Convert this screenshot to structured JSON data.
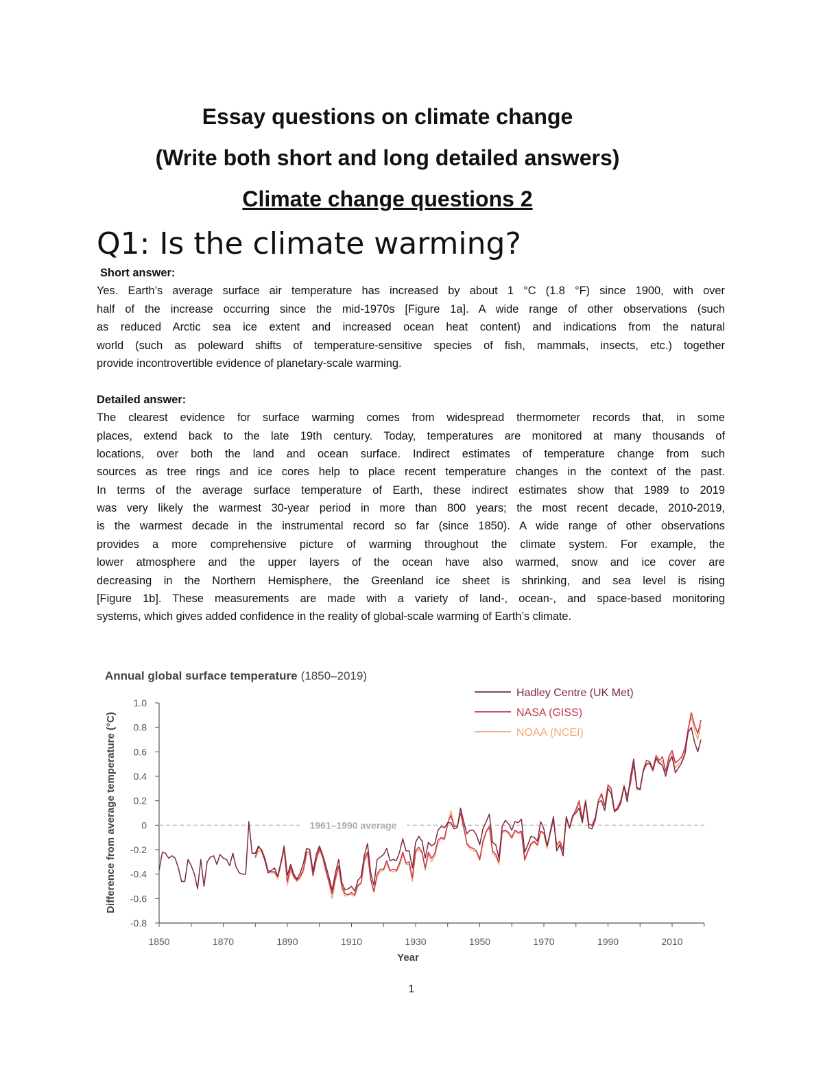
{
  "heading": {
    "title": "Essay questions on climate change",
    "subtitle": "(Write both short and long detailed answers)",
    "section": "Climate change questions 2"
  },
  "question": "Q1: Is the climate warming?",
  "short_answer": {
    "label": "Short answer:",
    "lines": [
      "Yes. Earth’s average surface air temperature has increased by about 1 °C (1.8 °F) since 1900, with over",
      "half of the increase occurring since the mid-1970s [Figure 1a]. A wide range of other observations (such",
      "as reduced Arctic sea ice extent and increased ocean heat content) and indications from the natural",
      "world (such as poleward shifts of temperature-sensitive species of fish, mammals, insects, etc.) together",
      "provide incontrovertible evidence of planetary-scale warming."
    ]
  },
  "detailed_answer": {
    "label": "Detailed answer:",
    "lines": [
      "The clearest evidence for surface warming comes from widespread thermometer records that, in some",
      "places, extend back to the late 19th century. Today, temperatures are monitored at many thousands of",
      "locations, over both the land and ocean surface. Indirect estimates of temperature change from such",
      "sources as tree rings and ice cores help to place recent temperature changes in the context of the past.",
      "In terms of the average surface temperature of Earth, these indirect estimates show that 1989 to 2019",
      "was very likely the warmest 30-year period in more than 800 years; the most recent decade, 2010-2019,",
      "is the warmest decade in the instrumental record so far (since 1850). A wide range of other observations",
      "provides a more comprehensive picture of warming throughout the climate system. For example, the",
      "lower atmosphere and the upper layers of the ocean have also warmed, snow and ice cover are",
      "decreasing in the Northern Hemisphere, the Greenland ice sheet is shrinking, and sea level is rising",
      "[Figure 1b]. These measurements are made with a variety of land-, ocean-, and space-based monitoring",
      "systems, which gives added confidence in the reality of global-scale warming of Earth’s climate."
    ]
  },
  "page_number": "1",
  "chart_data": {
    "type": "line",
    "title": "Annual global surface temperature",
    "title_range": "(1850–2019)",
    "xlabel": "Year",
    "ylabel": "Difference from average temperature (°C)",
    "xlim": [
      1850,
      2019
    ],
    "ylim": [
      -0.8,
      1.0
    ],
    "x_ticks": [
      "1850",
      "1870",
      "1890",
      "1910",
      "1930",
      "1950",
      "1970",
      "1990",
      "2010"
    ],
    "y_ticks": [
      "1.0",
      "0.8",
      "0.6",
      "0.4",
      "0.2",
      "0",
      "-0.2",
      "-0.4",
      "-0.6",
      "-0.8"
    ],
    "reference_line": {
      "value": 0,
      "label": "1961–1990 average",
      "style": "dashed",
      "color": "#bdbdbd"
    },
    "grid": false,
    "legend_position": "top-right",
    "series": [
      {
        "name": "Hadley Centre (UK Met)",
        "color": "#7b2a40",
        "start_year": 1850,
        "values": [
          -0.37,
          -0.22,
          -0.23,
          -0.27,
          -0.25,
          -0.27,
          -0.35,
          -0.46,
          -0.46,
          -0.28,
          -0.33,
          -0.4,
          -0.52,
          -0.28,
          -0.5,
          -0.3,
          -0.26,
          -0.25,
          -0.32,
          -0.24,
          -0.27,
          -0.28,
          -0.33,
          -0.23,
          -0.34,
          -0.39,
          -0.4,
          -0.4,
          0.03,
          -0.23,
          -0.23,
          -0.17,
          -0.21,
          -0.29,
          -0.39,
          -0.37,
          -0.35,
          -0.42,
          -0.31,
          -0.17,
          -0.41,
          -0.32,
          -0.4,
          -0.44,
          -0.39,
          -0.31,
          -0.19,
          -0.2,
          -0.38,
          -0.24,
          -0.17,
          -0.24,
          -0.33,
          -0.43,
          -0.53,
          -0.39,
          -0.28,
          -0.47,
          -0.53,
          -0.52,
          -0.5,
          -0.54,
          -0.45,
          -0.42,
          -0.25,
          -0.15,
          -0.39,
          -0.49,
          -0.28,
          -0.26,
          -0.24,
          -0.19,
          -0.29,
          -0.28,
          -0.29,
          -0.22,
          -0.11,
          -0.21,
          -0.21,
          -0.35,
          -0.14,
          -0.09,
          -0.13,
          -0.27,
          -0.14,
          -0.17,
          -0.15,
          -0.04,
          -0.01,
          -0.02,
          0.02,
          0.02,
          -0.03,
          -0.02,
          0.14,
          0.03,
          -0.07,
          -0.04,
          -0.04,
          -0.08,
          -0.16,
          -0.03,
          0.03,
          0.09,
          -0.14,
          -0.16,
          -0.27,
          -0.01,
          0.04,
          0.01,
          -0.04,
          0.03,
          0.02,
          0.05,
          -0.22,
          -0.16,
          -0.09,
          -0.1,
          -0.13,
          0.03,
          -0.03,
          -0.17,
          -0.05,
          0.07,
          -0.21,
          -0.16,
          -0.25,
          0.07,
          -0.02,
          0.08,
          0.1,
          0.14,
          0.02,
          0.19,
          -0.02,
          -0.03,
          0.04,
          0.19,
          0.2,
          0.12,
          0.3,
          0.26,
          0.11,
          0.13,
          0.18,
          0.32,
          0.19,
          0.39,
          0.54,
          0.31,
          0.29,
          0.44,
          0.5,
          0.51,
          0.45,
          0.55,
          0.51,
          0.49,
          0.4,
          0.51,
          0.56,
          0.43,
          0.47,
          0.51,
          0.58,
          0.76,
          0.8,
          0.68,
          0.6,
          0.7
        ]
      },
      {
        "name": "NASA (GISS)",
        "color": "#c4384c",
        "start_year": 1880,
        "values": [
          -0.26,
          -0.18,
          -0.2,
          -0.27,
          -0.37,
          -0.38,
          -0.38,
          -0.42,
          -0.3,
          -0.19,
          -0.46,
          -0.34,
          -0.42,
          -0.45,
          -0.42,
          -0.36,
          -0.22,
          -0.22,
          -0.41,
          -0.28,
          -0.19,
          -0.25,
          -0.37,
          -0.46,
          -0.56,
          -0.43,
          -0.33,
          -0.5,
          -0.56,
          -0.57,
          -0.55,
          -0.57,
          -0.49,
          -0.47,
          -0.28,
          -0.22,
          -0.44,
          -0.54,
          -0.4,
          -0.36,
          -0.36,
          -0.29,
          -0.37,
          -0.36,
          -0.37,
          -0.31,
          -0.22,
          -0.31,
          -0.3,
          -0.43,
          -0.21,
          -0.18,
          -0.22,
          -0.35,
          -0.22,
          -0.27,
          -0.23,
          -0.12,
          -0.1,
          -0.11,
          0.02,
          0.08,
          -0.01,
          -0.01,
          0.1,
          -0.02,
          -0.15,
          -0.18,
          -0.19,
          -0.21,
          -0.28,
          -0.13,
          -0.05,
          -0.01,
          -0.21,
          -0.24,
          -0.3,
          -0.05,
          -0.04,
          -0.06,
          -0.1,
          -0.04,
          -0.06,
          -0.05,
          -0.28,
          -0.21,
          -0.15,
          -0.13,
          -0.16,
          -0.05,
          -0.06,
          -0.17,
          -0.06,
          0.05,
          -0.16,
          -0.13,
          -0.2,
          0.06,
          -0.02,
          0.07,
          0.13,
          0.2,
          0.05,
          0.2,
          0.01,
          0.0,
          0.06,
          0.2,
          0.26,
          0.16,
          0.33,
          0.3,
          0.12,
          0.14,
          0.2,
          0.31,
          0.24,
          0.34,
          0.5,
          0.3,
          0.3,
          0.45,
          0.53,
          0.52,
          0.46,
          0.57,
          0.53,
          0.56,
          0.44,
          0.56,
          0.61,
          0.51,
          0.53,
          0.56,
          0.63,
          0.78,
          0.92,
          0.82,
          0.75,
          0.86
        ]
      },
      {
        "name": "NOAA (NCEI)",
        "color": "#f2a877",
        "start_year": 1880,
        "values": [
          -0.27,
          -0.21,
          -0.22,
          -0.29,
          -0.38,
          -0.39,
          -0.39,
          -0.44,
          -0.32,
          -0.21,
          -0.49,
          -0.37,
          -0.43,
          -0.46,
          -0.43,
          -0.38,
          -0.24,
          -0.24,
          -0.42,
          -0.29,
          -0.21,
          -0.27,
          -0.38,
          -0.48,
          -0.6,
          -0.45,
          -0.35,
          -0.52,
          -0.58,
          -0.56,
          -0.57,
          -0.58,
          -0.5,
          -0.48,
          -0.3,
          -0.24,
          -0.45,
          -0.55,
          -0.42,
          -0.38,
          -0.37,
          -0.31,
          -0.38,
          -0.38,
          -0.38,
          -0.33,
          -0.24,
          -0.32,
          -0.32,
          -0.46,
          -0.23,
          -0.2,
          -0.23,
          -0.37,
          -0.24,
          -0.3,
          -0.25,
          -0.14,
          -0.11,
          -0.12,
          0.0,
          0.12,
          0.0,
          -0.01,
          0.12,
          0.0,
          -0.16,
          -0.19,
          -0.21,
          -0.22,
          -0.29,
          -0.15,
          -0.06,
          -0.02,
          -0.23,
          -0.26,
          -0.32,
          -0.06,
          -0.05,
          -0.07,
          -0.11,
          -0.05,
          -0.07,
          -0.06,
          -0.29,
          -0.22,
          -0.16,
          -0.14,
          -0.17,
          -0.06,
          -0.07,
          -0.19,
          -0.07,
          0.04,
          -0.18,
          -0.15,
          -0.21,
          0.05,
          -0.03,
          0.06,
          0.11,
          0.18,
          0.04,
          0.21,
          0.0,
          -0.01,
          0.05,
          0.21,
          0.24,
          0.15,
          0.32,
          0.29,
          0.11,
          0.15,
          0.21,
          0.33,
          0.23,
          0.34,
          0.52,
          0.29,
          0.29,
          0.45,
          0.5,
          0.5,
          0.44,
          0.54,
          0.5,
          0.53,
          0.43,
          0.53,
          0.58,
          0.47,
          0.5,
          0.53,
          0.6,
          0.8,
          0.88,
          0.78,
          0.7,
          0.82
        ]
      }
    ]
  }
}
